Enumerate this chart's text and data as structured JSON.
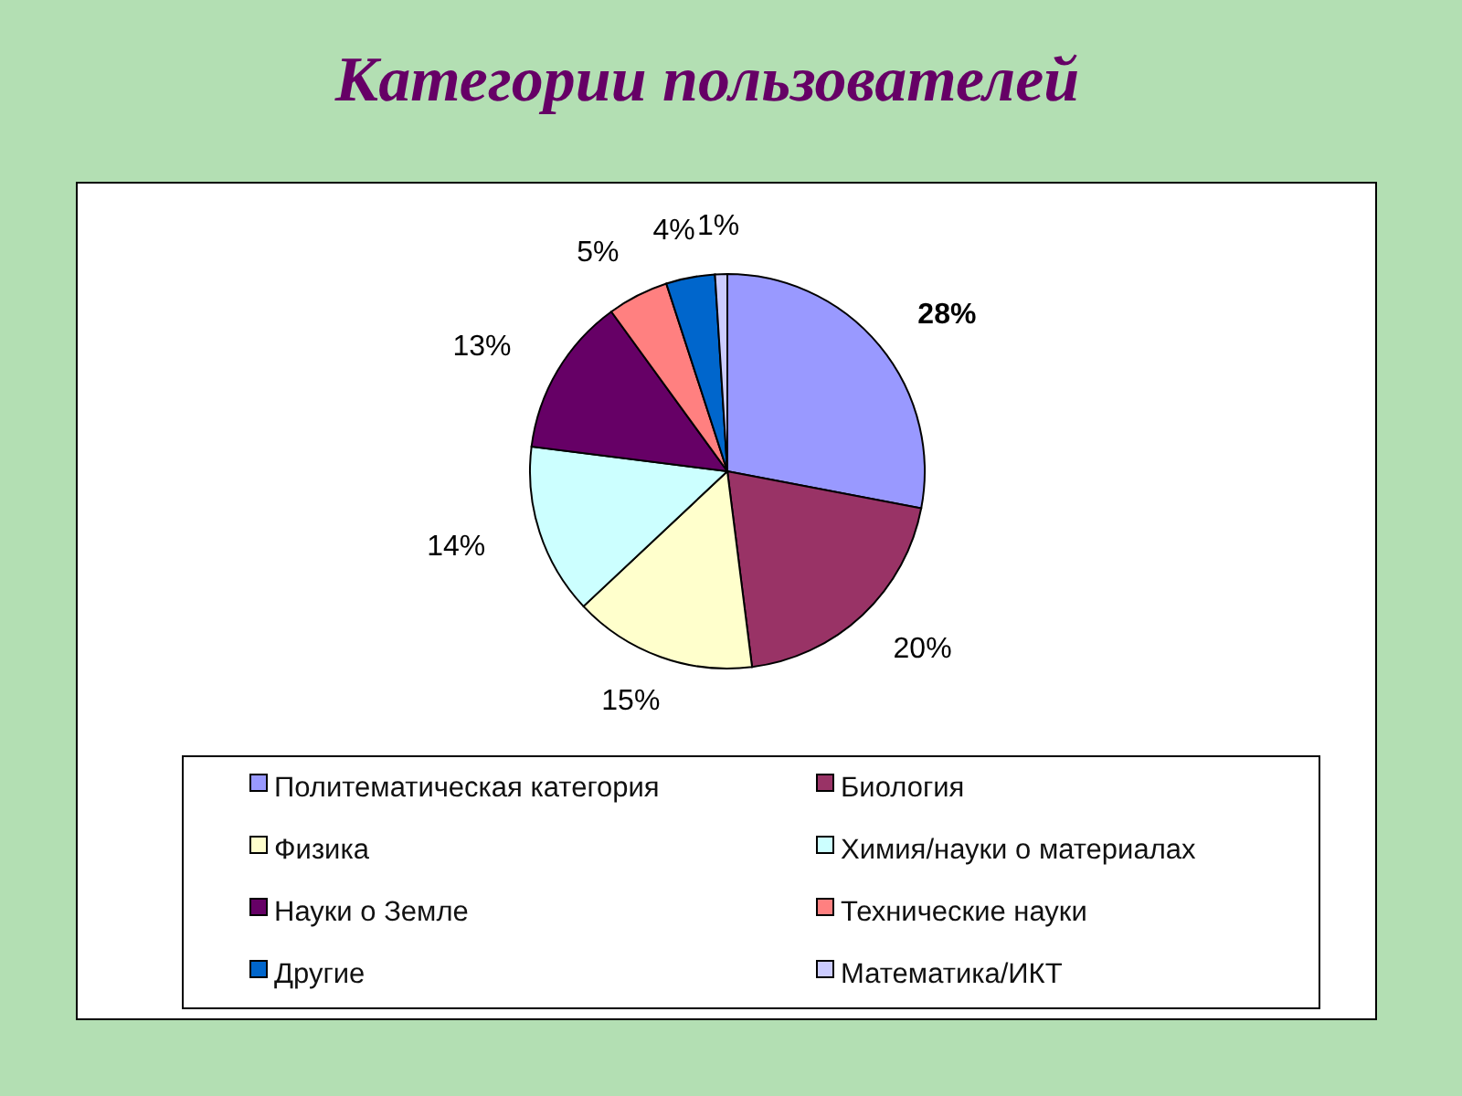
{
  "chart_data": {
    "type": "pie",
    "title": "Категории пользователей",
    "categories": [
      "Политематическая категория",
      "Биология",
      "Физика",
      "Химия/науки о материалах",
      "Науки о Земле",
      "Технические науки",
      "Другие",
      "Математика/ИКТ"
    ],
    "values": [
      28,
      20,
      15,
      14,
      13,
      5,
      4,
      1
    ],
    "colors": [
      "#9999ff",
      "#993366",
      "#ffffcc",
      "#ccffff",
      "#660066",
      "#ff8080",
      "#0066cc",
      "#ccccff"
    ],
    "value_labels": [
      "28%",
      "20%",
      "15%",
      "14%",
      "13%",
      "5%",
      "4%",
      "1%"
    ],
    "legend": "bottom"
  }
}
